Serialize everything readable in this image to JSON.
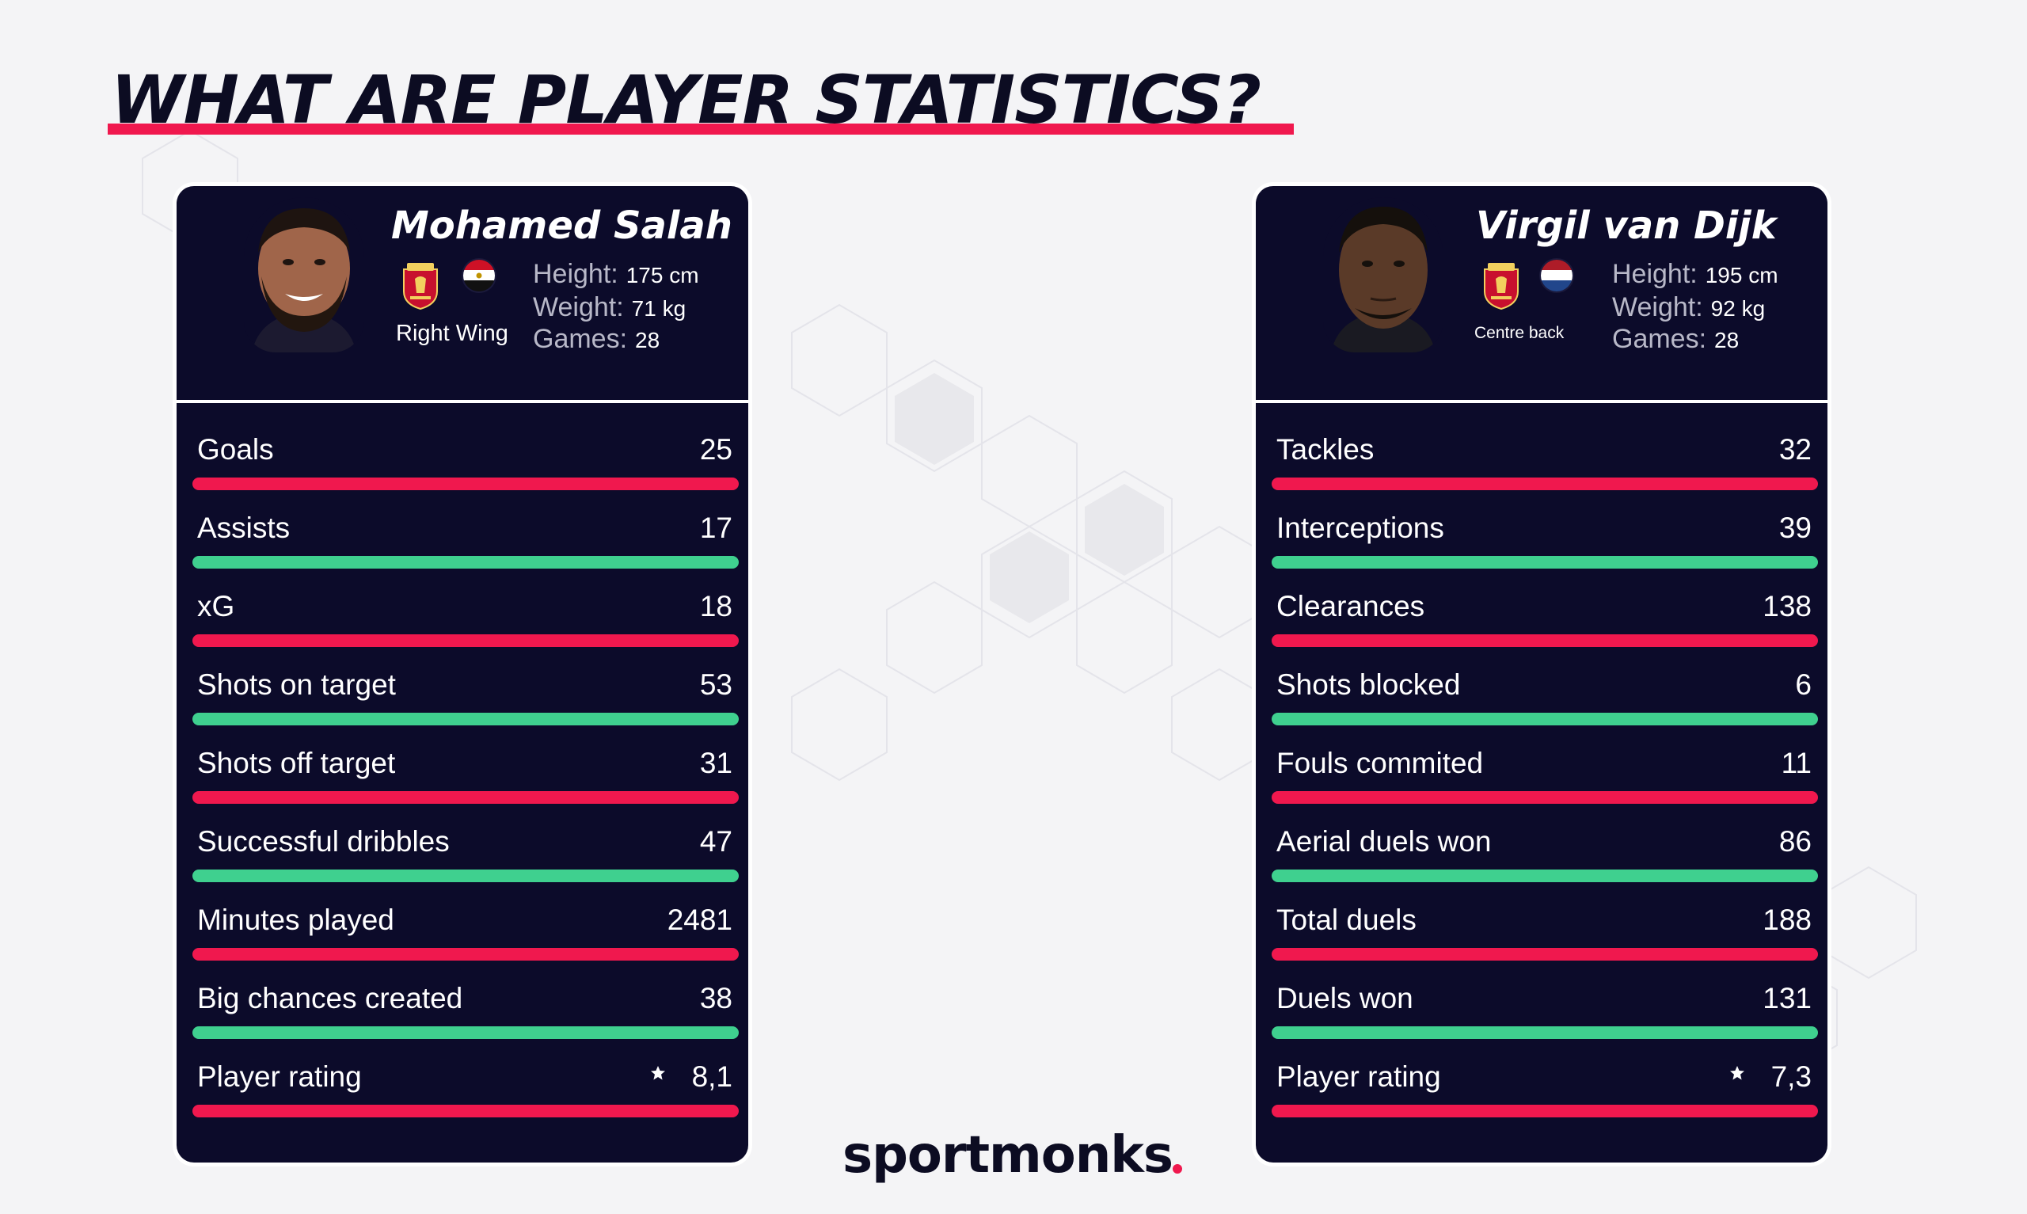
{
  "title": "WHAT ARE PLAYER STATISTICS?",
  "colors": {
    "accent": "#f0184e",
    "green": "#3fd08f",
    "card_bg": "#0c0b2a"
  },
  "players": [
    {
      "name": "Mohamed Salah",
      "position": "Right Wing",
      "flag": "egypt-flag-icon",
      "club": "liverpool-crest-icon",
      "height_label": "Height:",
      "height": "175 cm",
      "weight_label": "Weight:",
      "weight": "71 kg",
      "games_label": "Games:",
      "games": "28",
      "stats": [
        {
          "label": "Goals",
          "value": "25",
          "bar": "red"
        },
        {
          "label": "Assists",
          "value": "17",
          "bar": "green"
        },
        {
          "label": "xG",
          "value": "18",
          "bar": "red"
        },
        {
          "label": "Shots on target",
          "value": "53",
          "bar": "green"
        },
        {
          "label": "Shots off target",
          "value": "31",
          "bar": "red"
        },
        {
          "label": "Successful dribbles",
          "value": "47",
          "bar": "green"
        },
        {
          "label": "Minutes played",
          "value": "2481",
          "bar": "red"
        },
        {
          "label": "Big chances created",
          "value": "38",
          "bar": "green"
        },
        {
          "label": "Player rating",
          "value": "8,1",
          "bar": "red",
          "icon": "star-icon"
        }
      ]
    },
    {
      "name": "Virgil van Dijk",
      "position": "Centre back",
      "flag": "netherlands-flag-icon",
      "club": "liverpool-crest-icon",
      "height_label": "Height:",
      "height": "195 cm",
      "weight_label": "Weight:",
      "weight": "92 kg",
      "games_label": "Games:",
      "games": "28",
      "stats": [
        {
          "label": "Tackles",
          "value": "32",
          "bar": "red"
        },
        {
          "label": "Interceptions",
          "value": "39",
          "bar": "green"
        },
        {
          "label": "Clearances",
          "value": "138",
          "bar": "red"
        },
        {
          "label": "Shots blocked",
          "value": "6",
          "bar": "green"
        },
        {
          "label": "Fouls commited",
          "value": "11",
          "bar": "red"
        },
        {
          "label": "Aerial duels won",
          "value": "86",
          "bar": "green"
        },
        {
          "label": "Total duels",
          "value": "188",
          "bar": "red"
        },
        {
          "label": "Duels won",
          "value": "131",
          "bar": "green"
        },
        {
          "label": "Player rating",
          "value": "7,3",
          "bar": "red",
          "icon": "star-icon"
        }
      ]
    }
  ],
  "logo": "sportmonks"
}
